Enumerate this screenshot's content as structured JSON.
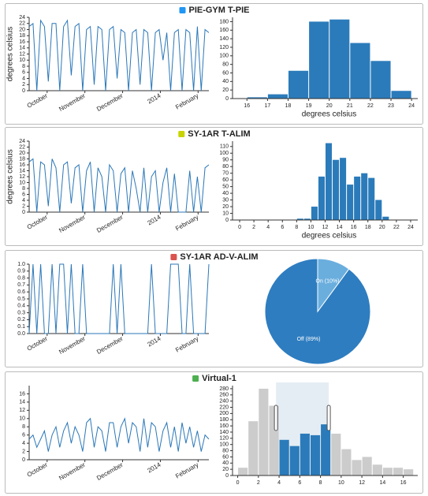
{
  "chart_data": [
    {
      "type": "line",
      "title": "PIE-GYM T-PIE",
      "title_color": "#2196f3",
      "color": "#2a77b8",
      "ylabel": "degrees celsius",
      "x_labels": [
        "October",
        "November",
        "December",
        "2014",
        "February"
      ],
      "values": [
        21,
        22,
        0,
        23,
        21,
        3,
        22,
        22,
        0,
        21,
        23,
        5,
        21,
        22,
        0,
        20,
        21,
        2,
        21,
        20,
        0,
        20,
        21,
        4,
        20,
        19,
        0,
        19,
        20,
        2,
        20,
        19,
        0,
        19,
        20,
        10,
        19,
        0,
        19,
        20,
        0,
        20,
        19,
        0,
        21,
        0,
        20,
        19
      ],
      "ylim": [
        0,
        24
      ],
      "yticks": [
        0,
        2,
        4,
        6,
        8,
        10,
        12,
        14,
        16,
        18,
        20,
        22,
        24
      ]
    },
    {
      "type": "histogram",
      "color": "#2b7bba",
      "xlabel": "degrees celsius",
      "bins": [
        16,
        17,
        18,
        19,
        20,
        21,
        22,
        23,
        24
      ],
      "values": [
        3,
        10,
        65,
        180,
        185,
        130,
        88,
        18
      ],
      "xlim": [
        15.3,
        24.3
      ],
      "xticks": [
        16,
        17,
        18,
        19,
        20,
        21,
        22,
        23,
        24
      ],
      "ylim": [
        0,
        190
      ],
      "yticks": [
        0,
        20,
        40,
        60,
        80,
        100,
        120,
        140,
        160,
        180
      ]
    },
    {
      "type": "line",
      "title": "SY-1AR T-ALIM",
      "title_color": "#c8d400",
      "color": "#2a77b8",
      "ylabel": "degrees celsius",
      "x_labels": [
        "October",
        "November",
        "December",
        "2014",
        "February"
      ],
      "values": [
        17,
        18,
        0,
        17,
        16,
        2,
        18,
        15,
        0,
        16,
        17,
        3,
        15,
        16,
        0,
        14,
        17,
        0,
        15,
        12,
        0,
        16,
        14,
        0,
        13,
        15,
        0,
        14,
        8,
        0,
        15,
        0,
        12,
        14,
        0,
        10,
        15,
        0,
        13,
        0,
        0,
        0,
        14,
        0,
        12,
        0,
        15,
        16
      ],
      "ylim": [
        0,
        24
      ],
      "yticks": [
        0,
        2,
        4,
        6,
        8,
        10,
        12,
        14,
        16,
        18,
        20,
        22,
        24
      ]
    },
    {
      "type": "histogram",
      "color": "#2b7bba",
      "xlabel": "degrees celsius",
      "bins": [
        8,
        9,
        10,
        11,
        12,
        13,
        14,
        15,
        16,
        17,
        18,
        19,
        20,
        21
      ],
      "values": [
        2,
        2,
        20,
        65,
        115,
        90,
        93,
        53,
        65,
        70,
        63,
        30,
        5
      ],
      "xlim": [
        -1,
        25
      ],
      "xticks": [
        0,
        2,
        4,
        6,
        8,
        10,
        12,
        14,
        16,
        18,
        20,
        22,
        24
      ],
      "ylim": [
        0,
        118
      ],
      "yticks": [
        0,
        10,
        20,
        30,
        40,
        50,
        60,
        70,
        80,
        90,
        100,
        110
      ]
    },
    {
      "type": "line",
      "title": "SY-1AR AD-V-ALIM",
      "title_color": "#d9534f",
      "color": "#2a77b8",
      "x_labels": [
        "October",
        "November",
        "December",
        "2014",
        "February"
      ],
      "values": [
        0,
        1,
        0,
        1,
        0,
        0,
        1,
        0,
        1,
        1,
        0,
        1,
        0,
        0,
        1,
        0,
        0,
        0,
        0,
        0,
        0,
        0,
        1,
        0,
        1,
        0,
        0,
        0,
        0,
        0,
        0,
        0,
        1,
        0,
        0,
        0,
        0,
        1,
        1,
        1,
        0,
        0,
        1,
        0,
        0,
        0,
        0,
        1
      ],
      "ylim": [
        0,
        1
      ],
      "yticks": [
        {
          "value": 0,
          "label": "0.0"
        },
        0.1,
        0.2,
        0.3,
        0.4,
        0.5,
        0.6,
        0.7,
        0.8,
        0.9,
        {
          "value": 1,
          "label": "1.0"
        }
      ]
    },
    {
      "type": "pie",
      "values": [
        89,
        10
      ],
      "value_labels": [
        "Off (89%)",
        "On (10%)"
      ],
      "colors": [
        "#2e7dc0",
        "#6aaede"
      ]
    },
    {
      "type": "line",
      "title": "Virtual-1",
      "title_color": "#4caf50",
      "color": "#2a77b8",
      "x_labels": [
        "October",
        "November",
        "December",
        "2014",
        "February"
      ],
      "values": [
        5,
        6,
        3,
        5,
        7,
        2,
        6,
        8,
        3,
        7,
        9,
        4,
        8,
        6,
        2,
        9,
        10,
        3,
        8,
        7,
        2,
        9,
        9,
        3,
        8,
        10,
        4,
        9,
        8,
        2,
        10,
        3,
        9,
        8,
        2,
        7,
        9,
        3,
        8,
        2,
        9,
        4,
        8,
        3,
        7,
        2,
        6,
        5
      ],
      "ylim": [
        0,
        18
      ],
      "yticks": [
        0,
        2,
        4,
        6,
        8,
        10,
        12,
        14,
        16
      ]
    },
    {
      "type": "histogram",
      "color": "#2b7bba",
      "unselected_color": "#cccccc",
      "brush": [
        3.7,
        8.8
      ],
      "bins": [
        0,
        1,
        2,
        3,
        4,
        5,
        6,
        7,
        8,
        9,
        10,
        11,
        12,
        13,
        14,
        15,
        16,
        17
      ],
      "values": [
        25,
        175,
        280,
        225,
        115,
        95,
        135,
        130,
        165,
        135,
        85,
        50,
        60,
        35,
        25,
        25,
        20
      ],
      "xlim": [
        -0.5,
        17.4
      ],
      "xticks": [
        0,
        2,
        4,
        6,
        8,
        10,
        12,
        14,
        16
      ],
      "ylim": [
        0,
        290
      ],
      "yticks": [
        0,
        20,
        40,
        60,
        80,
        100,
        120,
        140,
        160,
        180,
        200,
        220,
        240,
        260,
        280
      ]
    }
  ]
}
